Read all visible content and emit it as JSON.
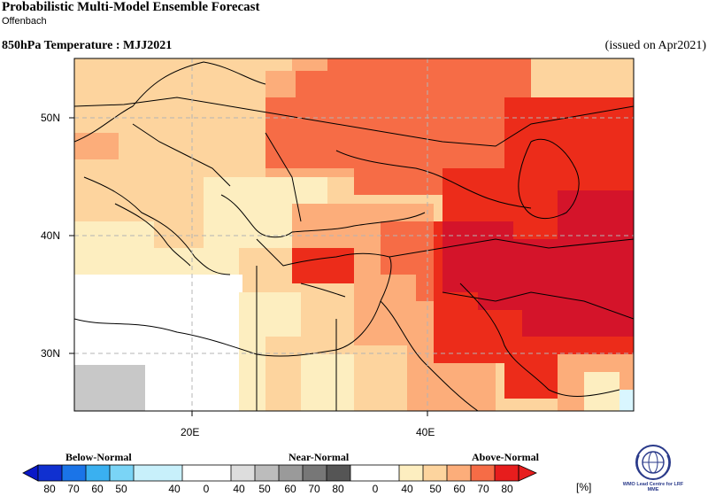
{
  "header": {
    "title": "Probabilistic Multi-Model Ensemble Forecast",
    "subtitle": "Offenbach",
    "variable": "850hPa Temperature : MJJ2021",
    "issued": "(issued on Apr2021)"
  },
  "map": {
    "lat_labels": [
      "50N",
      "40N",
      "30N"
    ],
    "lon_labels": [
      "20E",
      "40E"
    ],
    "colors": {
      "a40": "#fdeec0",
      "a50": "#fdd49e",
      "a60": "#fcad7a",
      "a70": "#f66c46",
      "a80": "#ec2c1a",
      "a90": "#d4142a",
      "b50": "#c8c8c8",
      "b40": "#d9f6ff",
      "white": "#ffffff",
      "coast": "#000000",
      "grid": "#b4b4b4"
    }
  },
  "legend": {
    "categories": [
      "Below-Normal",
      "Near-Normal",
      "Above-Normal"
    ],
    "ticks": [
      "80",
      "70",
      "60",
      "50",
      "40",
      "0",
      "40",
      "50",
      "60",
      "70",
      "80",
      "0",
      "40",
      "50",
      "60",
      "70",
      "80"
    ],
    "unit": "[%]",
    "below_colors": [
      "#1030d0",
      "#1a74e8",
      "#3ab0f0",
      "#7ad4f6",
      "#c8f0fb"
    ],
    "near_colors": [
      "#dddddd",
      "#bcbcbc",
      "#9a9a9a",
      "#777777",
      "#555555"
    ],
    "above_colors": [
      "#fdeec0",
      "#fdd49e",
      "#fcad7a",
      "#f66c46",
      "#e71d1d"
    ]
  },
  "logo": {
    "text": "WMO Lead Centre for LRF MME",
    "icon": "wmo-emblem-icon"
  }
}
